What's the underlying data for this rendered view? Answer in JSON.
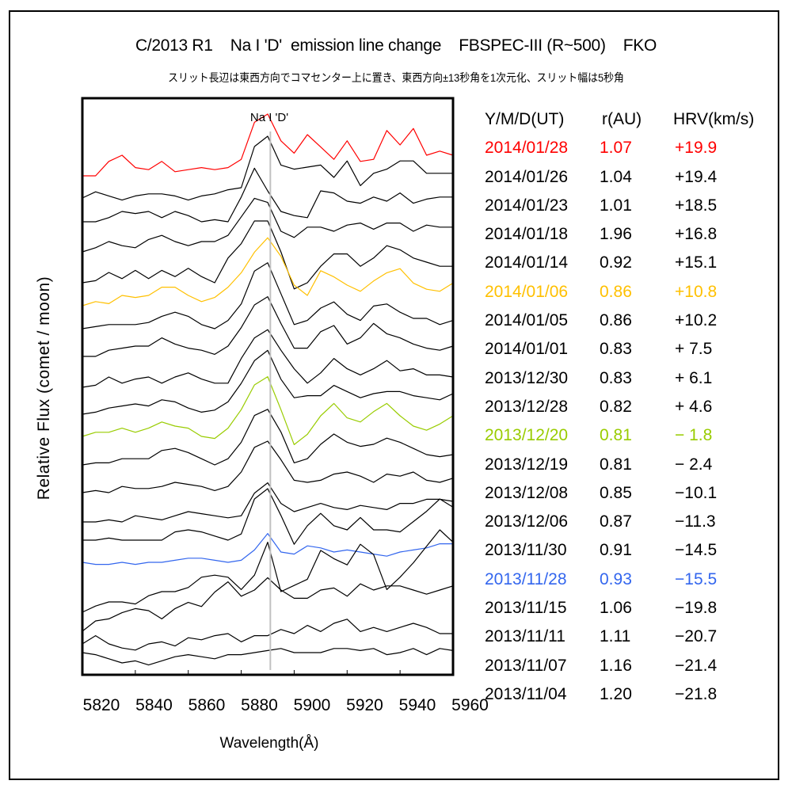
{
  "header": {
    "title": "C/2013 R1    Na I 'D'  emission line change    FBSPEC-III (R~500)    FKO",
    "subtitle": "スリット長辺は東西方向でコマセンター上に置き、東西方向±13秒角を1次元化、スリット幅は5秒角"
  },
  "chart_data": {
    "type": "line",
    "title": "C/2013 R1    Na I 'D'  emission line change    FBSPEC-III (R~500)    FKO",
    "subtitle": "スリット長辺は東西方向でコマセンター上に置き、東西方向±13秒角を1次元化、スリット幅は5秒角",
    "xlabel": "Wavelength(Å)",
    "ylabel": "Relative Flux (comet / moon)",
    "xlim": [
      5820,
      5960
    ],
    "xticks": [
      5820,
      5840,
      5860,
      5880,
      5900,
      5920,
      5940,
      5960
    ],
    "grid": false,
    "stacked": true,
    "stack_step": 0.45,
    "marker_line": {
      "label": "Na I 'D'",
      "x": 5891,
      "color": "#c0c0c0"
    },
    "x": [
      5820,
      5825,
      5830,
      5835,
      5840,
      5845,
      5850,
      5855,
      5860,
      5865,
      5870,
      5875,
      5880,
      5885,
      5890,
      5895,
      5900,
      5905,
      5910,
      5915,
      5920,
      5925,
      5930,
      5935,
      5940,
      5945,
      5950,
      5955,
      5960
    ],
    "legend": {
      "placement": "right",
      "headers": [
        "Y/M/D(UT)",
        "r(AU)",
        "HRV(km/s)"
      ]
    },
    "series": [
      {
        "date": "2014/01/28",
        "r": "1.07",
        "hrv": "+19.9",
        "color": "#ff0000",
        "values": [
          0.0,
          0.0,
          0.07,
          0.1,
          0.04,
          0.03,
          0.07,
          0.02,
          0.03,
          0.04,
          0.03,
          0.04,
          0.08,
          0.26,
          0.3,
          0.17,
          0.11,
          0.2,
          0.14,
          0.08,
          0.17,
          0.07,
          0.08,
          0.22,
          0.15,
          0.23,
          0.1,
          0.12,
          0.1
        ]
      },
      {
        "date": "2014/01/26",
        "r": "1.04",
        "hrv": "+19.4",
        "color": "#000000",
        "values": [
          0.0,
          0.03,
          0.01,
          -0.01,
          0.01,
          0.02,
          0.02,
          0.01,
          -0.01,
          0.01,
          0.02,
          0.04,
          0.05,
          0.25,
          0.3,
          0.16,
          0.14,
          0.15,
          0.16,
          0.1,
          0.18,
          0.06,
          0.12,
          0.14,
          0.18,
          0.18,
          0.12,
          0.12,
          0.12
        ]
      },
      {
        "date": "2014/01/23",
        "r": "1.01",
        "hrv": "+18.5",
        "color": "#000000",
        "values": [
          0.0,
          0.0,
          0.02,
          0.05,
          0.04,
          0.05,
          0.02,
          0.05,
          0.03,
          0.0,
          0.01,
          0.0,
          0.12,
          0.26,
          0.15,
          0.05,
          0.03,
          0.02,
          0.15,
          0.14,
          0.1,
          0.09,
          0.12,
          0.1,
          0.14,
          0.09,
          0.11,
          0.12,
          0.12
        ]
      },
      {
        "date": "2014/01/18",
        "r": "1.96",
        "hrv": "+16.8",
        "color": "#000000",
        "values": [
          0.0,
          0.02,
          0.05,
          0.03,
          0.02,
          0.06,
          0.08,
          0.05,
          0.03,
          0.05,
          0.05,
          0.08,
          0.17,
          0.26,
          0.24,
          0.1,
          0.07,
          0.12,
          0.12,
          0.1,
          0.13,
          0.14,
          0.11,
          0.14,
          0.14,
          0.1,
          0.13,
          0.12,
          0.12
        ]
      },
      {
        "date": "2014/01/14",
        "r": "0.92",
        "hrv": "+15.1",
        "color": "#000000",
        "values": [
          0.0,
          0.01,
          0.05,
          0.02,
          0.06,
          0.02,
          0.06,
          0.03,
          0.07,
          0.03,
          0.0,
          0.12,
          0.19,
          0.3,
          0.3,
          0.15,
          -0.03,
          0.0,
          0.08,
          0.14,
          0.14,
          0.08,
          0.12,
          0.18,
          0.16,
          0.12,
          0.1,
          0.08,
          0.08
        ]
      },
      {
        "date": "2014/01/06",
        "r": "0.86",
        "hrv": "+10.8",
        "color": "#ffc000",
        "values": [
          0.0,
          0.02,
          0.01,
          0.05,
          0.04,
          0.05,
          0.09,
          0.09,
          0.05,
          0.02,
          0.04,
          0.09,
          0.16,
          0.26,
          0.33,
          0.24,
          0.1,
          0.05,
          0.17,
          0.14,
          0.1,
          0.07,
          0.12,
          0.16,
          0.18,
          0.11,
          0.08,
          0.07,
          0.11
        ]
      },
      {
        "date": "2014/01/05",
        "r": "0.86",
        "hrv": "+10.2",
        "color": "#000000",
        "values": [
          0.0,
          0.01,
          0.02,
          0.02,
          0.02,
          0.03,
          0.06,
          0.08,
          0.06,
          0.02,
          0.0,
          0.04,
          0.12,
          0.28,
          0.32,
          0.17,
          0.02,
          0.04,
          0.1,
          0.13,
          0.07,
          0.04,
          0.11,
          0.12,
          0.08,
          0.05,
          0.05,
          0.02,
          0.04
        ]
      },
      {
        "date": "2014/01/01",
        "r": "0.83",
        "hrv": "+7.5",
        "color": "#000000",
        "values": [
          0.0,
          0.0,
          0.03,
          0.04,
          0.05,
          0.05,
          0.09,
          0.06,
          0.04,
          0.03,
          0.01,
          0.05,
          0.14,
          0.25,
          0.29,
          0.16,
          0.04,
          0.04,
          0.12,
          0.15,
          0.06,
          0.09,
          0.16,
          0.11,
          0.09,
          0.06,
          0.04,
          0.03,
          0.05
        ]
      },
      {
        "date": "2013/12/30",
        "r": "0.83",
        "hrv": "+6.1",
        "color": "#000000",
        "values": [
          0.0,
          0.01,
          0.05,
          0.02,
          0.04,
          0.05,
          0.02,
          0.05,
          0.07,
          0.04,
          0.02,
          0.02,
          0.14,
          0.24,
          0.28,
          0.18,
          0.09,
          0.02,
          0.07,
          0.14,
          0.09,
          0.06,
          0.09,
          0.13,
          0.08,
          0.09,
          0.06,
          0.06,
          0.05
        ]
      },
      {
        "date": "2013/12/28",
        "r": "0.82",
        "hrv": "+4.6",
        "color": "#000000",
        "values": [
          0.0,
          0.01,
          0.03,
          0.04,
          0.05,
          0.04,
          0.07,
          0.06,
          0.03,
          0.01,
          0.02,
          0.06,
          0.15,
          0.26,
          0.31,
          0.17,
          0.08,
          0.09,
          0.09,
          0.14,
          0.11,
          0.08,
          0.1,
          0.11,
          0.11,
          0.09,
          0.08,
          0.07,
          0.1
        ]
      },
      {
        "date": "2013/12/20",
        "r": "0.81",
        "hrv": "-1.8",
        "color": "#99cc00",
        "values": [
          0.0,
          0.02,
          0.02,
          0.04,
          0.02,
          0.04,
          0.07,
          0.05,
          0.04,
          0.0,
          -0.01,
          0.04,
          0.13,
          0.25,
          0.29,
          0.13,
          -0.04,
          0.01,
          0.1,
          0.16,
          0.09,
          0.07,
          0.12,
          0.16,
          0.1,
          0.05,
          0.03,
          0.06,
          0.1
        ]
      },
      {
        "date": "2013/12/19",
        "r": "0.81",
        "hrv": "-2.4",
        "color": "#000000",
        "values": [
          0.0,
          0.01,
          0.01,
          0.03,
          0.03,
          0.03,
          0.07,
          0.08,
          0.06,
          0.03,
          0.0,
          0.03,
          0.11,
          0.24,
          0.27,
          0.16,
          0.01,
          0.03,
          0.1,
          0.15,
          0.11,
          0.09,
          0.1,
          0.13,
          0.11,
          0.08,
          0.05,
          0.04,
          0.05
        ]
      },
      {
        "date": "2013/12/08",
        "r": "0.85",
        "hrv": "-10.1",
        "color": "#000000",
        "values": [
          0.0,
          0.01,
          0.0,
          0.03,
          0.02,
          0.02,
          0.03,
          0.05,
          0.04,
          0.03,
          0.01,
          0.03,
          0.1,
          0.22,
          0.25,
          0.16,
          0.06,
          0.05,
          0.06,
          0.09,
          0.1,
          0.08,
          0.05,
          0.09,
          0.08,
          0.1,
          0.06,
          0.05,
          0.07
        ]
      },
      {
        "date": "2013/12/06",
        "r": "0.87",
        "hrv": "-11.3",
        "color": "#000000",
        "values": [
          0.0,
          0.0,
          0.01,
          0.0,
          0.03,
          0.02,
          0.01,
          0.03,
          0.05,
          0.04,
          0.03,
          0.02,
          0.03,
          0.14,
          0.19,
          0.09,
          0.05,
          0.07,
          0.09,
          0.07,
          0.06,
          0.08,
          0.07,
          0.06,
          0.09,
          0.09,
          0.11,
          0.11,
          0.1
        ]
      },
      {
        "date": "2013/11/30",
        "r": "0.91",
        "hrv": "-14.5",
        "color": "#000000",
        "values": [
          0.0,
          0.0,
          0.01,
          0.0,
          0.0,
          0.0,
          0.0,
          0.04,
          0.05,
          0.04,
          0.02,
          0.0,
          0.03,
          0.2,
          0.25,
          0.12,
          -0.02,
          0.07,
          0.13,
          0.07,
          0.05,
          0.11,
          0.05,
          0.05,
          0.04,
          0.09,
          0.14,
          0.2,
          0.16
        ]
      },
      {
        "date": "2013/11/28",
        "r": "0.93",
        "hrv": "-15.5",
        "color": "#3366ee",
        "values": [
          0.0,
          -0.01,
          -0.01,
          0.0,
          -0.01,
          0.0,
          0.0,
          0.01,
          0.02,
          0.02,
          0.01,
          0.0,
          0.01,
          0.06,
          0.14,
          0.05,
          0.04,
          0.08,
          0.07,
          0.05,
          0.06,
          0.05,
          0.04,
          0.03,
          0.05,
          0.06,
          0.07,
          0.09,
          0.09
        ]
      },
      {
        "date": "2013/11/15",
        "r": "1.06",
        "hrv": "-19.8",
        "color": "#000000",
        "values": [
          0.0,
          0.03,
          0.05,
          0.05,
          0.04,
          0.08,
          0.1,
          0.1,
          0.12,
          0.17,
          0.18,
          0.17,
          0.11,
          0.18,
          0.34,
          0.1,
          0.13,
          0.16,
          0.3,
          0.26,
          0.23,
          0.33,
          0.28,
          0.11,
          0.17,
          0.24,
          0.32,
          0.4,
          0.34
        ]
      },
      {
        "date": "2013/11/11",
        "r": "1.11",
        "hrv": "-20.7",
        "color": "#000000",
        "values": [
          0.0,
          0.05,
          0.06,
          0.09,
          0.11,
          0.1,
          0.06,
          0.11,
          0.14,
          0.12,
          0.19,
          0.24,
          0.17,
          0.2,
          0.26,
          0.2,
          0.16,
          0.16,
          0.2,
          0.21,
          0.17,
          0.23,
          0.2,
          0.22,
          0.22,
          0.2,
          0.18,
          0.2,
          0.22
        ]
      },
      {
        "date": "2013/11/07",
        "r": "1.16",
        "hrv": "-21.4",
        "color": "#000000",
        "values": [
          0.0,
          0.04,
          0.0,
          -0.02,
          -0.03,
          0.0,
          0.01,
          -0.01,
          0.03,
          0.02,
          0.04,
          0.05,
          0.01,
          0.04,
          0.04,
          0.07,
          0.05,
          0.09,
          0.06,
          0.1,
          0.12,
          0.06,
          0.08,
          0.06,
          0.08,
          0.1,
          0.08,
          0.05,
          0.05
        ]
      },
      {
        "date": "2013/11/04",
        "r": "1.20",
        "hrv": "-21.8",
        "color": "#000000",
        "values": [
          0.0,
          -0.01,
          -0.03,
          -0.05,
          -0.04,
          -0.06,
          -0.04,
          -0.02,
          -0.01,
          -0.02,
          -0.03,
          -0.01,
          -0.01,
          0.0,
          0.01,
          0.02,
          0.0,
          0.0,
          0.0,
          0.02,
          0.02,
          0.01,
          0.02,
          -0.01,
          0.0,
          0.02,
          -0.01,
          0.02,
          0.01
        ]
      }
    ]
  }
}
